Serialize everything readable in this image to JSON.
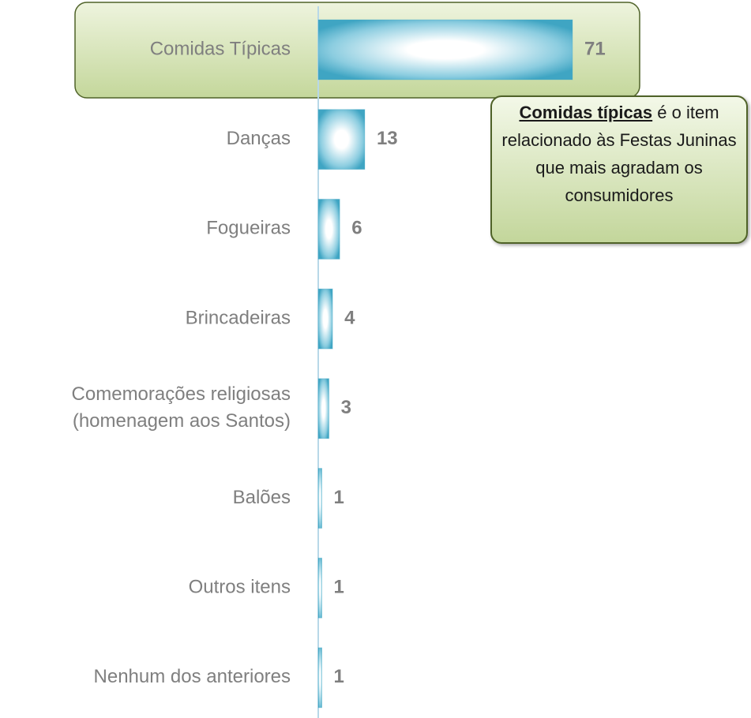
{
  "chart_data": {
    "type": "bar",
    "orientation": "horizontal",
    "categories": [
      "Comidas Típicas",
      "Danças",
      "Fogueiras",
      "Brincadeiras",
      "Comemorações religiosas\n(homenagem aos Santos)",
      "Balões",
      "Outros itens",
      "Nenhum dos anteriores"
    ],
    "values": [
      71,
      13,
      6,
      4,
      3,
      1,
      1,
      1
    ],
    "color": "#4bacc6",
    "highlight_color": "#1ea1d8",
    "label_color": "#7f7f7f",
    "annotation": {
      "emphasis": "Comidas típicas",
      "text": "é o item relacionado às Festas Juninas que mais agradam os consumidores"
    }
  }
}
